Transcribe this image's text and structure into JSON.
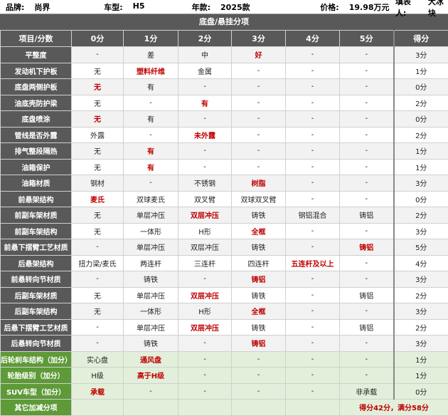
{
  "header": {
    "info": [
      {
        "label": "品牌:",
        "value": "尚界"
      },
      {
        "label": "车型:",
        "value": "H5"
      },
      {
        "label": "年款:",
        "value": "2025款"
      },
      {
        "label": "价格:",
        "value": "19.98万元"
      },
      {
        "label": "填表人:",
        "value": "大冰块"
      }
    ],
    "title": "底盘/悬挂分项"
  },
  "table": {
    "columns": [
      "项目/分数",
      "0分",
      "1分",
      "2分",
      "3分",
      "4分",
      "5分",
      "得分"
    ],
    "rows": [
      {
        "cells": [
          "平整度",
          "-",
          "差",
          "中",
          "好",
          "-",
          "-",
          "3分"
        ],
        "highlight": 4,
        "bonus": false
      },
      {
        "cells": [
          "发动机下护板",
          "无",
          "塑料纤维",
          "金属",
          "-",
          "-",
          "-",
          "1分"
        ],
        "highlight": 2,
        "bonus": false
      },
      {
        "cells": [
          "底盘两侧护板",
          "无",
          "有",
          "-",
          "-",
          "-",
          "-",
          "0分"
        ],
        "highlight": 1,
        "bonus": false
      },
      {
        "cells": [
          "油底壳防护梁",
          "无",
          "-",
          "有",
          "-",
          "-",
          "-",
          "2分"
        ],
        "highlight": 3,
        "bonus": false
      },
      {
        "cells": [
          "底盘喷涂",
          "无",
          "有",
          "-",
          "-",
          "-",
          "-",
          "0分"
        ],
        "highlight": 1,
        "bonus": false
      },
      {
        "cells": [
          "管线是否外露",
          "外露",
          "-",
          "未外露",
          "-",
          "-",
          "-",
          "2分"
        ],
        "highlight": 3,
        "bonus": false
      },
      {
        "cells": [
          "排气整段隔热",
          "无",
          "有",
          "-",
          "-",
          "-",
          "-",
          "1分"
        ],
        "highlight": 2,
        "bonus": false
      },
      {
        "cells": [
          "油箱保护",
          "无",
          "有",
          "-",
          "-",
          "-",
          "-",
          "1分"
        ],
        "highlight": 2,
        "bonus": false
      },
      {
        "cells": [
          "油箱材质",
          "钢材",
          "-",
          "不锈钢",
          "树脂",
          "-",
          "-",
          "3分"
        ],
        "highlight": 4,
        "bonus": false
      },
      {
        "cells": [
          "前悬架结构",
          "麦氏",
          "双球麦氏",
          "双叉臂",
          "双球双叉臂",
          "-",
          "-",
          "0分"
        ],
        "highlight": 1,
        "bonus": false
      },
      {
        "cells": [
          "前副车架材质",
          "无",
          "单层冲压",
          "双层冲压",
          "铸铁",
          "钢铝混合",
          "铸铝",
          "2分"
        ],
        "highlight": 3,
        "bonus": false
      },
      {
        "cells": [
          "前副车架结构",
          "无",
          "一体形",
          "H形",
          "全框",
          "-",
          "-",
          "3分"
        ],
        "highlight": 4,
        "bonus": false
      },
      {
        "cells": [
          "前悬下摆臂工艺材质",
          "-",
          "单层冲压",
          "双层冲压",
          "铸铁",
          "-",
          "铸铝",
          "5分"
        ],
        "highlight": 6,
        "bonus": false
      },
      {
        "cells": [
          "后悬架结构",
          "扭力梁/麦氏",
          "两连杆",
          "三连杆",
          "四连杆",
          "五连杆及以上",
          "-",
          "4分"
        ],
        "highlight": 5,
        "bonus": false
      },
      {
        "cells": [
          "前悬转向节材质",
          "-",
          "铸铁",
          "-",
          "铸铝",
          "-",
          "-",
          "3分"
        ],
        "highlight": 4,
        "bonus": false
      },
      {
        "cells": [
          "后副车架材质",
          "无",
          "单层冲压",
          "双层冲压",
          "铸铁",
          "-",
          "铸铝",
          "2分"
        ],
        "highlight": 3,
        "bonus": false
      },
      {
        "cells": [
          "后副车架结构",
          "无",
          "一体形",
          "H形",
          "全框",
          "-",
          "-",
          "3分"
        ],
        "highlight": 4,
        "bonus": false
      },
      {
        "cells": [
          "后悬下摆臂工艺材质",
          "-",
          "单层冲压",
          "双层冲压",
          "铸铁",
          "-",
          "铸铝",
          "2分"
        ],
        "highlight": 3,
        "bonus": false
      },
      {
        "cells": [
          "后悬转向节材质",
          "-",
          "铸铁",
          "-",
          "铸铝",
          "-",
          "-",
          "3分"
        ],
        "highlight": 4,
        "bonus": false
      },
      {
        "cells": [
          "后轮刹车结构（加分）",
          "实心盘",
          "通风盘",
          "-",
          "-",
          "-",
          "-",
          "1分"
        ],
        "highlight": 2,
        "bonus": true
      },
      {
        "cells": [
          "轮胎级别（加分）",
          "H级",
          "高于H级",
          "-",
          "-",
          "-",
          "-",
          "1分"
        ],
        "highlight": 2,
        "bonus": true
      },
      {
        "cells": [
          "SUV车型（加分）",
          "承载",
          "-",
          "-",
          "-",
          "-",
          "非承载",
          "0分"
        ],
        "highlight": 1,
        "bonus": true
      }
    ],
    "footer": {
      "label": "其它加减分项",
      "summary": "得分42分，满分58分"
    }
  }
}
